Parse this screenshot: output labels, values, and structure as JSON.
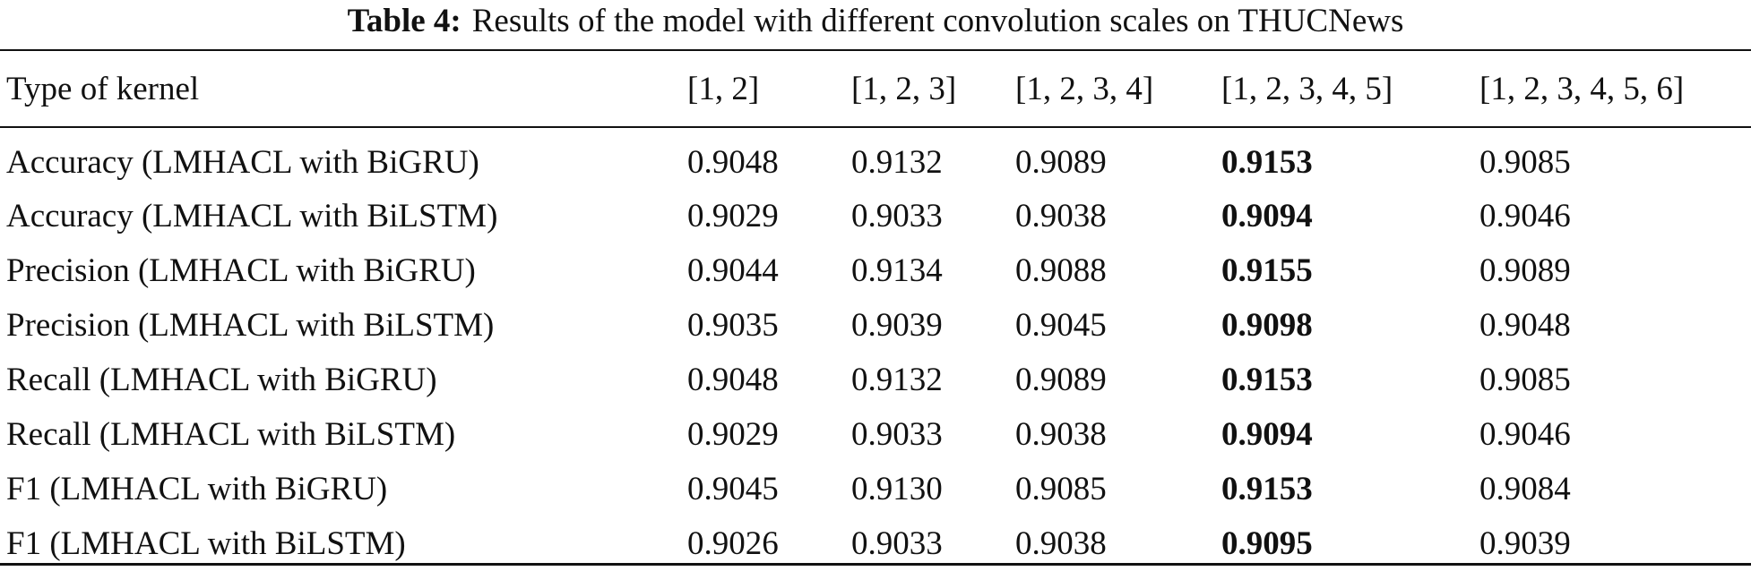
{
  "caption": {
    "label": "Table 4:",
    "text": "Results of the model with different convolution scales on THUCNews"
  },
  "table": {
    "header": [
      "Type of kernel",
      "[1, 2]",
      "[1, 2, 3]",
      "[1, 2, 3, 4]",
      "[1, 2, 3, 4, 5]",
      "[1, 2, 3, 4, 5, 6]"
    ],
    "rows": [
      {
        "label": "Accuracy (LMHACL with BiGRU)",
        "values": [
          "0.9048",
          "0.9132",
          "0.9089",
          "0.9153",
          "0.9085"
        ]
      },
      {
        "label": "Accuracy (LMHACL with BiLSTM)",
        "values": [
          "0.9029",
          "0.9033",
          "0.9038",
          "0.9094",
          "0.9046"
        ]
      },
      {
        "label": "Precision (LMHACL with BiGRU)",
        "values": [
          "0.9044",
          "0.9134",
          "0.9088",
          "0.9155",
          "0.9089"
        ]
      },
      {
        "label": "Precision (LMHACL with BiLSTM)",
        "values": [
          "0.9035",
          "0.9039",
          "0.9045",
          "0.9098",
          "0.9048"
        ]
      },
      {
        "label": "Recall (LMHACL with BiGRU)",
        "values": [
          "0.9048",
          "0.9132",
          "0.9089",
          "0.9153",
          "0.9085"
        ]
      },
      {
        "label": "Recall (LMHACL with BiLSTM)",
        "values": [
          "0.9029",
          "0.9033",
          "0.9038",
          "0.9094",
          "0.9046"
        ]
      },
      {
        "label": "F1 (LMHACL with BiGRU)",
        "values": [
          "0.9045",
          "0.9130",
          "0.9085",
          "0.9153",
          "0.9084"
        ]
      },
      {
        "label": "F1 (LMHACL with BiLSTM)",
        "values": [
          "0.9026",
          "0.9033",
          "0.9038",
          "0.9095",
          "0.9039"
        ]
      }
    ],
    "bold_column_index": 3
  }
}
